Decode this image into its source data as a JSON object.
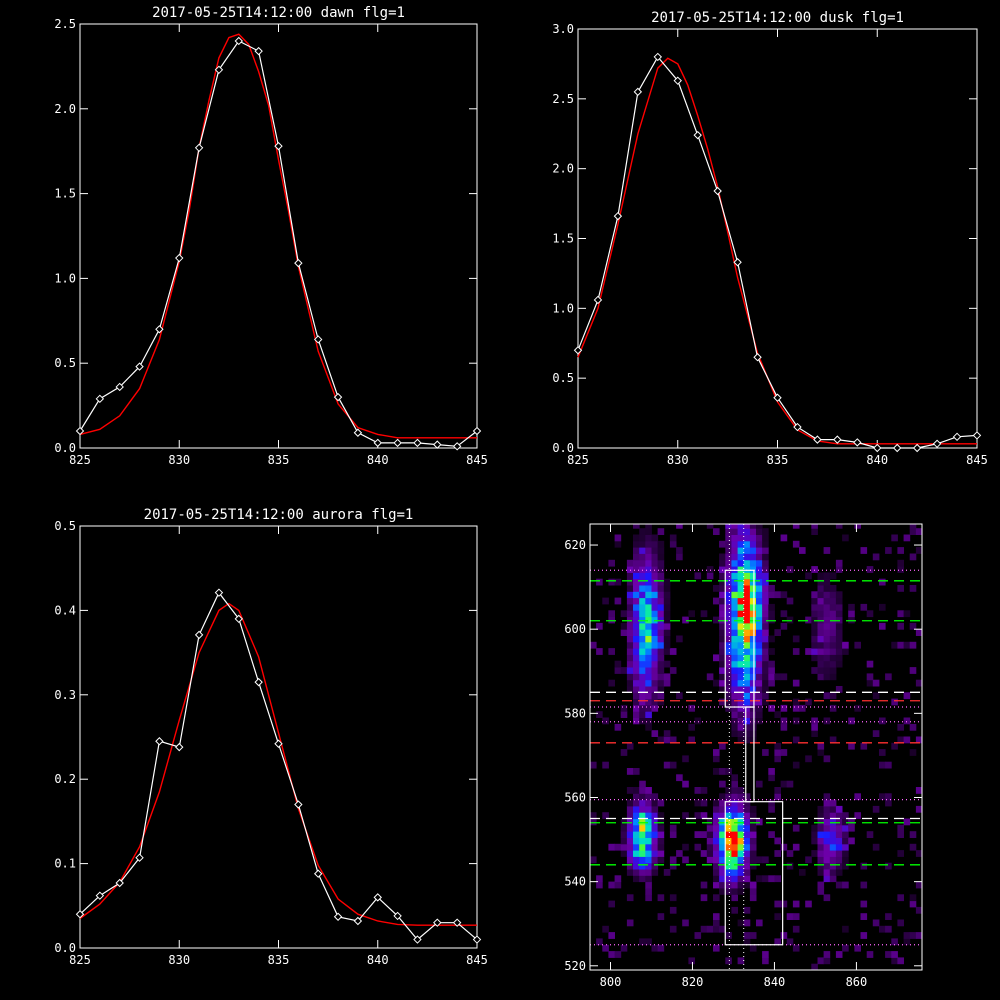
{
  "chart_data": [
    {
      "type": "line",
      "title": "2017-05-25T14:12:00 dawn flg=1",
      "xlim": [
        825,
        845
      ],
      "ylim": [
        0,
        2.5
      ],
      "xticks": [
        825,
        830,
        835,
        840,
        845
      ],
      "yticks": [
        0.0,
        0.5,
        1.0,
        1.5,
        2.0,
        2.5
      ],
      "grid": false,
      "series": [
        {
          "kind": "observed",
          "color": "#ffffff",
          "marker": "diamond",
          "x": [
            825,
            826,
            827,
            828,
            829,
            830,
            831,
            832,
            833,
            834,
            835,
            836,
            837,
            838,
            839,
            840,
            841,
            842,
            843,
            844,
            845
          ],
          "y": [
            0.1,
            0.29,
            0.36,
            0.48,
            0.7,
            1.12,
            1.77,
            2.23,
            2.4,
            2.34,
            1.78,
            1.09,
            0.64,
            0.3,
            0.09,
            0.03,
            0.03,
            0.03,
            0.02,
            0.01,
            0.1
          ]
        },
        {
          "kind": "fit",
          "color": "#ff0000",
          "x": [
            825,
            826,
            827,
            828,
            829,
            830,
            830.5,
            831,
            831.5,
            832,
            832.5,
            833,
            833.5,
            834,
            834.5,
            835,
            835.5,
            836,
            837,
            838,
            839,
            840,
            841,
            842,
            843,
            844,
            845
          ],
          "y": [
            0.08,
            0.11,
            0.19,
            0.35,
            0.64,
            1.1,
            1.4,
            1.77,
            2.05,
            2.3,
            2.42,
            2.44,
            2.38,
            2.22,
            2.02,
            1.7,
            1.4,
            1.07,
            0.57,
            0.26,
            0.12,
            0.08,
            0.06,
            0.06,
            0.06,
            0.06,
            0.06
          ]
        }
      ]
    },
    {
      "type": "line",
      "title": "2017-05-25T14:12:00 dusk flg=1",
      "xlim": [
        825,
        845
      ],
      "ylim": [
        0,
        3.0
      ],
      "xticks": [
        825,
        830,
        835,
        840,
        845
      ],
      "yticks": [
        0.0,
        0.5,
        1.0,
        1.5,
        2.0,
        2.5,
        3.0
      ],
      "grid": false,
      "series": [
        {
          "kind": "observed",
          "color": "#ffffff",
          "marker": "diamond",
          "x": [
            825,
            826,
            827,
            828,
            829,
            830,
            831,
            832,
            833,
            834,
            835,
            836,
            837,
            838,
            839,
            840,
            841,
            842,
            843,
            844,
            845
          ],
          "y": [
            0.7,
            1.06,
            1.66,
            2.55,
            2.8,
            2.63,
            2.24,
            1.84,
            1.33,
            0.65,
            0.36,
            0.15,
            0.06,
            0.06,
            0.04,
            0.0,
            0.0,
            0.0,
            0.03,
            0.08,
            0.09
          ]
        },
        {
          "kind": "fit",
          "color": "#ff0000",
          "x": [
            825,
            826,
            827,
            828,
            829,
            829.5,
            830,
            830.5,
            831,
            831.5,
            832,
            832.5,
            833,
            834,
            835,
            836,
            837,
            838,
            839,
            840,
            841,
            842,
            843,
            844,
            845
          ],
          "y": [
            0.65,
            1.0,
            1.6,
            2.25,
            2.72,
            2.79,
            2.75,
            2.6,
            2.38,
            2.14,
            1.87,
            1.55,
            1.22,
            0.68,
            0.33,
            0.13,
            0.05,
            0.03,
            0.03,
            0.03,
            0.03,
            0.03,
            0.03,
            0.03,
            0.03
          ]
        }
      ]
    },
    {
      "type": "line",
      "title": "2017-05-25T14:12:00 aurora flg=1",
      "xlim": [
        825,
        845
      ],
      "ylim": [
        0,
        0.5
      ],
      "xticks": [
        825,
        830,
        835,
        840,
        845
      ],
      "yticks": [
        0.0,
        0.1,
        0.2,
        0.3,
        0.4,
        0.5
      ],
      "grid": false,
      "series": [
        {
          "kind": "observed",
          "color": "#ffffff",
          "marker": "diamond",
          "x": [
            825,
            826,
            827,
            828,
            829,
            830,
            831,
            832,
            833,
            834,
            835,
            836,
            837,
            838,
            839,
            840,
            841,
            842,
            843,
            844,
            845
          ],
          "y": [
            0.04,
            0.062,
            0.077,
            0.107,
            0.245,
            0.238,
            0.371,
            0.421,
            0.39,
            0.315,
            0.242,
            0.17,
            0.088,
            0.037,
            0.032,
            0.06,
            0.038,
            0.01,
            0.03,
            0.03,
            0.01
          ]
        },
        {
          "kind": "fit",
          "color": "#ff0000",
          "x": [
            825,
            826,
            827,
            828,
            829,
            830,
            831,
            832,
            832.5,
            833,
            834,
            835,
            836,
            837,
            838,
            839,
            840,
            841,
            842,
            843,
            844,
            845
          ],
          "y": [
            0.035,
            0.052,
            0.078,
            0.12,
            0.185,
            0.27,
            0.35,
            0.4,
            0.408,
            0.4,
            0.345,
            0.255,
            0.165,
            0.098,
            0.058,
            0.04,
            0.032,
            0.028,
            0.027,
            0.027,
            0.027,
            0.027
          ]
        }
      ]
    },
    {
      "type": "heatmap",
      "title": "",
      "xlim": [
        795,
        876
      ],
      "ylim": [
        519,
        625
      ],
      "xticks": [
        800,
        820,
        840,
        860
      ],
      "yticks": [
        520,
        540,
        560,
        580,
        600,
        620
      ],
      "colormap": "rainbow-on-black",
      "emission_blobs": [
        {
          "x": 808,
          "y": 600,
          "sx": 2.5,
          "sy": 11,
          "peak": 0.55
        },
        {
          "x": 832,
          "y": 602,
          "sx": 2.8,
          "sy": 13,
          "peak": 0.78
        },
        {
          "x": 833,
          "y": 606,
          "sx": 2.0,
          "sy": 4,
          "peak": 0.35
        },
        {
          "x": 852,
          "y": 600,
          "sx": 2.5,
          "sy": 8,
          "peak": 0.18
        },
        {
          "x": 807,
          "y": 550,
          "sx": 2.2,
          "sy": 5,
          "peak": 0.75
        },
        {
          "x": 829,
          "y": 549,
          "sx": 2.5,
          "sy": 5.5,
          "peak": 0.95
        },
        {
          "x": 853,
          "y": 549,
          "sx": 2.2,
          "sy": 5,
          "peak": 0.35
        }
      ],
      "boxes": [
        {
          "x0": 828,
          "x1": 835,
          "y0": 581.5,
          "y1": 614
        },
        {
          "x0": 833,
          "x1": 835,
          "y0": 559,
          "y1": 581.5
        },
        {
          "x0": 828,
          "x1": 842,
          "y0": 525,
          "y1": 559
        }
      ],
      "hlines": [
        {
          "y": 611.5,
          "color": "#00ff00",
          "dash": "10,6"
        },
        {
          "y": 602,
          "color": "#00ff00",
          "dash": "10,6"
        },
        {
          "y": 585,
          "color": "#ffffff",
          "dash": "10,6"
        },
        {
          "y": 583,
          "color": "#ff3030",
          "dash": "10,6"
        },
        {
          "y": 573,
          "color": "#ff3030",
          "dash": "10,6"
        },
        {
          "y": 555,
          "color": "#ffffff",
          "dash": "10,6"
        },
        {
          "y": 554,
          "color": "#00ff00",
          "dash": "10,6"
        },
        {
          "y": 544,
          "color": "#00ff00",
          "dash": "10,6"
        },
        {
          "y": 614,
          "color": "#ff66ff",
          "dash": "1,3"
        },
        {
          "y": 581.5,
          "color": "#ff66ff",
          "dash": "1,3"
        },
        {
          "y": 578,
          "color": "#ff66ff",
          "dash": "1,3"
        },
        {
          "y": 559.5,
          "color": "#ff66ff",
          "dash": "1,3"
        },
        {
          "y": 525,
          "color": "#ff66ff",
          "dash": "1,3"
        }
      ],
      "vlines": [
        {
          "x": 829,
          "color": "#ffffff",
          "dash": "1,3"
        },
        {
          "x": 832.5,
          "color": "#ffffff",
          "dash": "1,3"
        }
      ]
    }
  ]
}
